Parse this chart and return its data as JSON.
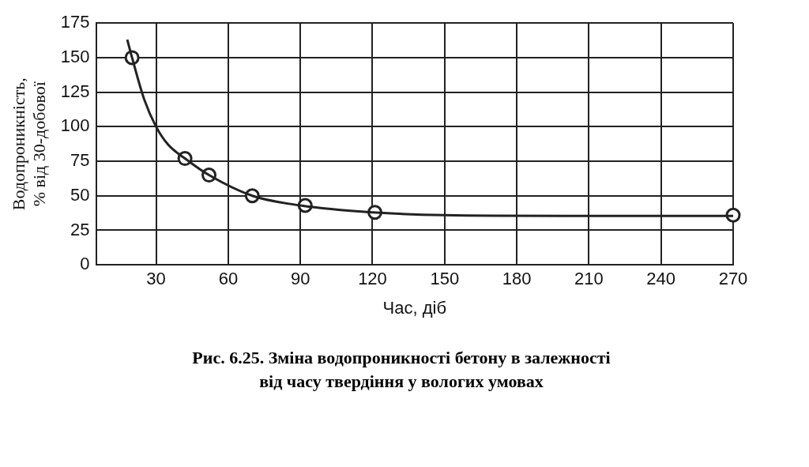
{
  "chart_data": {
    "type": "scatter",
    "title": "Рис. 6.25. Зміна водопроникності бетону в залежності від часу твердіння у вологих умовах",
    "xlabel": "Час, діб",
    "ylabel": "Водопроникність, % від 30-добової",
    "xlim": [
      5,
      270
    ],
    "xticks": [
      30,
      60,
      90,
      120,
      150,
      180,
      210,
      240,
      270
    ],
    "ylim": [
      0,
      175
    ],
    "yticks": [
      0,
      25,
      50,
      75,
      100,
      125,
      150,
      175
    ],
    "grid": true,
    "legend": false,
    "series": [
      {
        "type": "line",
        "color": "#222222",
        "marker": "none",
        "line_style": "solid",
        "x": [
          18,
          20,
          25,
          30,
          35,
          42,
          52,
          70,
          90,
          120,
          150,
          200,
          270
        ],
        "values": [
          163,
          150,
          120,
          100,
          87,
          77,
          65,
          50,
          43,
          38,
          36,
          35.5,
          35.5
        ]
      },
      {
        "color": "#222222",
        "marker": "circle",
        "x": [
          20,
          42,
          52,
          70,
          92,
          121,
          270
        ],
        "values": [
          150,
          77,
          65,
          50,
          43,
          38,
          36
        ]
      }
    ]
  }
}
